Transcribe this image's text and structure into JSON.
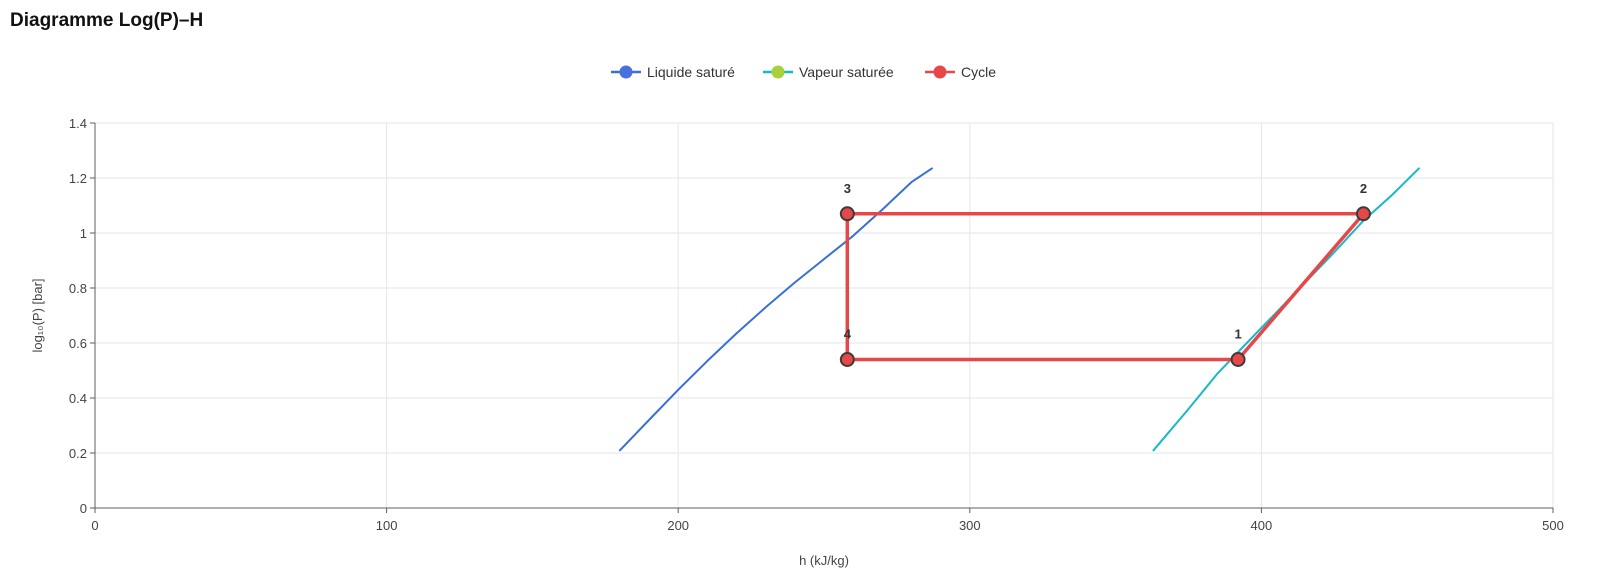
{
  "page": {
    "title": "Diagramme Log(P)–H"
  },
  "chart_data": {
    "type": "line",
    "title": "Diagramme Log(P)–H",
    "xlabel": "h (kJ/kg)",
    "ylabel": "log₁₀(P) [bar]",
    "xlim": [
      0,
      500
    ],
    "ylim": [
      0,
      1.4
    ],
    "x_ticks": [
      0,
      100,
      200,
      300,
      400,
      500
    ],
    "x_tick_labels": [
      "0",
      "100",
      "200",
      "300",
      "400",
      "500"
    ],
    "y_ticks": [
      0,
      0.2,
      0.4,
      0.6,
      0.8,
      1.0,
      1.2,
      1.4
    ],
    "y_tick_labels": [
      "0",
      "0.2",
      "0.4",
      "0.6",
      "0.8",
      "1",
      "1.2",
      "1.4"
    ],
    "grid": true,
    "legend_position": "top-center",
    "series": [
      {
        "name": "Liquide saturé",
        "color": "#3a6fd6",
        "legend_color": "#4a6fde",
        "points": [
          [
            180,
            0.21
          ],
          [
            190,
            0.32
          ],
          [
            200,
            0.43
          ],
          [
            210,
            0.535
          ],
          [
            220,
            0.635
          ],
          [
            230,
            0.73
          ],
          [
            240,
            0.82
          ],
          [
            250,
            0.905
          ],
          [
            260,
            0.99
          ],
          [
            270,
            1.085
          ],
          [
            280,
            1.185
          ],
          [
            287,
            1.235
          ]
        ]
      },
      {
        "name": "Vapeur saturée",
        "color": "#17b8c9",
        "legend_color": "#a9cf3b",
        "points": [
          [
            363,
            0.21
          ],
          [
            375,
            0.36
          ],
          [
            385,
            0.49
          ],
          [
            395,
            0.6
          ],
          [
            405,
            0.71
          ],
          [
            415,
            0.82
          ],
          [
            425,
            0.93
          ],
          [
            435,
            1.045
          ],
          [
            445,
            1.14
          ],
          [
            454,
            1.235
          ]
        ]
      },
      {
        "name": "Cycle",
        "color": "#e8474a",
        "legend_color": "#e8474a",
        "points": [
          {
            "x": 392,
            "y": 0.54,
            "label": "1"
          },
          {
            "x": 435,
            "y": 1.07,
            "label": "2"
          },
          {
            "x": 258,
            "y": 1.07,
            "label": "3"
          },
          {
            "x": 258,
            "y": 0.54,
            "label": "4"
          },
          {
            "x": 392,
            "y": 0.54,
            "label": ""
          }
        ]
      }
    ]
  }
}
